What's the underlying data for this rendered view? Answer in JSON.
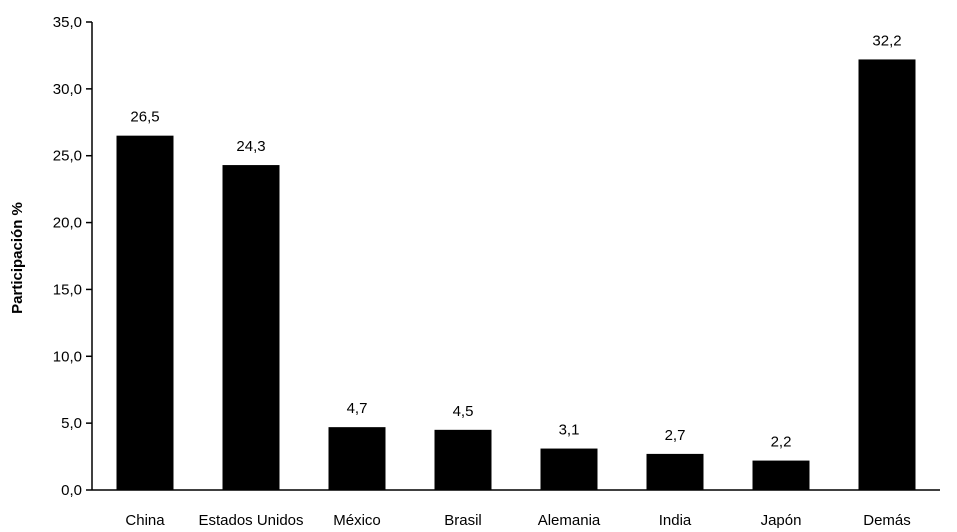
{
  "chart_data": {
    "type": "bar",
    "title": "",
    "xlabel": "",
    "ylabel": "Participación %",
    "categories": [
      "China",
      "Estados Unidos",
      "México",
      "Brasil",
      "Alemania",
      "India",
      "Japón",
      "Demás"
    ],
    "values": [
      26.5,
      24.3,
      4.7,
      4.5,
      3.1,
      2.7,
      2.2,
      32.2
    ],
    "value_labels": [
      "26,5",
      "24,3",
      "4,7",
      "4,5",
      "3,1",
      "2,7",
      "2,2",
      "32,2"
    ],
    "yticks": [
      0,
      5,
      10,
      15,
      20,
      25,
      30,
      35
    ],
    "ytick_labels": [
      "0,0",
      "5,0",
      "10,0",
      "15,0",
      "20,0",
      "25,0",
      "30,0",
      "35,0"
    ],
    "ylim": [
      0,
      35
    ],
    "grid": false,
    "legend": "none",
    "bar_color": "#000000"
  }
}
